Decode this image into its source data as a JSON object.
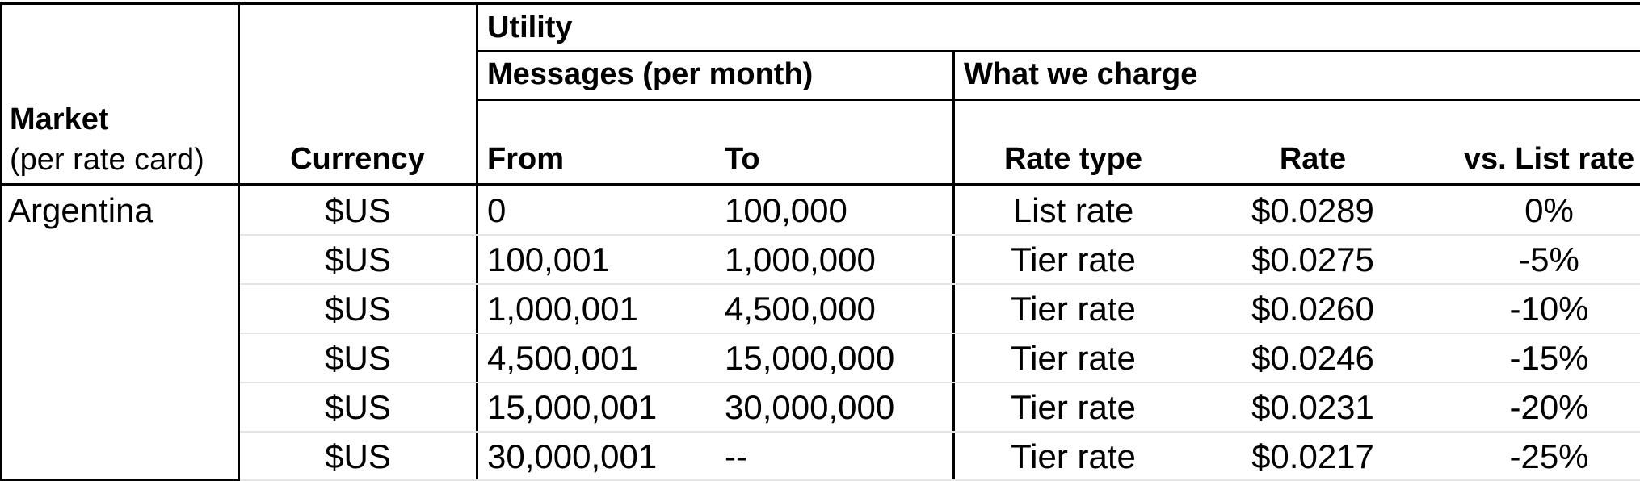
{
  "table": {
    "title_group": "Utility",
    "header": {
      "market_line1": "Market",
      "market_line2": "(per rate card)",
      "currency": "Currency",
      "messages_group": "Messages (per month)",
      "charge_group": "What we charge",
      "from": "From",
      "to": "To",
      "rate_type": "Rate type",
      "rate": "Rate",
      "vs_list_rate": "vs. List rate"
    },
    "market": "Argentina",
    "rows": [
      {
        "currency": "$US",
        "from": "0",
        "to": "100,000",
        "rate_type": "List rate",
        "rate": "$0.0289",
        "vs_list": "0%"
      },
      {
        "currency": "$US",
        "from": "100,001",
        "to": "1,000,000",
        "rate_type": "Tier rate",
        "rate": "$0.0275",
        "vs_list": "-5%"
      },
      {
        "currency": "$US",
        "from": "1,000,001",
        "to": "4,500,000",
        "rate_type": "Tier rate",
        "rate": "$0.0260",
        "vs_list": "-10%"
      },
      {
        "currency": "$US",
        "from": "4,500,001",
        "to": "15,000,000",
        "rate_type": "Tier rate",
        "rate": "$0.0246",
        "vs_list": "-15%"
      },
      {
        "currency": "$US",
        "from": "15,000,001",
        "to": "30,000,000",
        "rate_type": "Tier rate",
        "rate": "$0.0231",
        "vs_list": "-20%"
      },
      {
        "currency": "$US",
        "from": "30,000,001",
        "to": "--",
        "rate_type": "Tier rate",
        "rate": "$0.0217",
        "vs_list": "-25%"
      }
    ],
    "colors": {
      "border": "#000000",
      "row_divider": "#e4e4e4",
      "background": "#ffffff",
      "text": "#000000"
    }
  }
}
